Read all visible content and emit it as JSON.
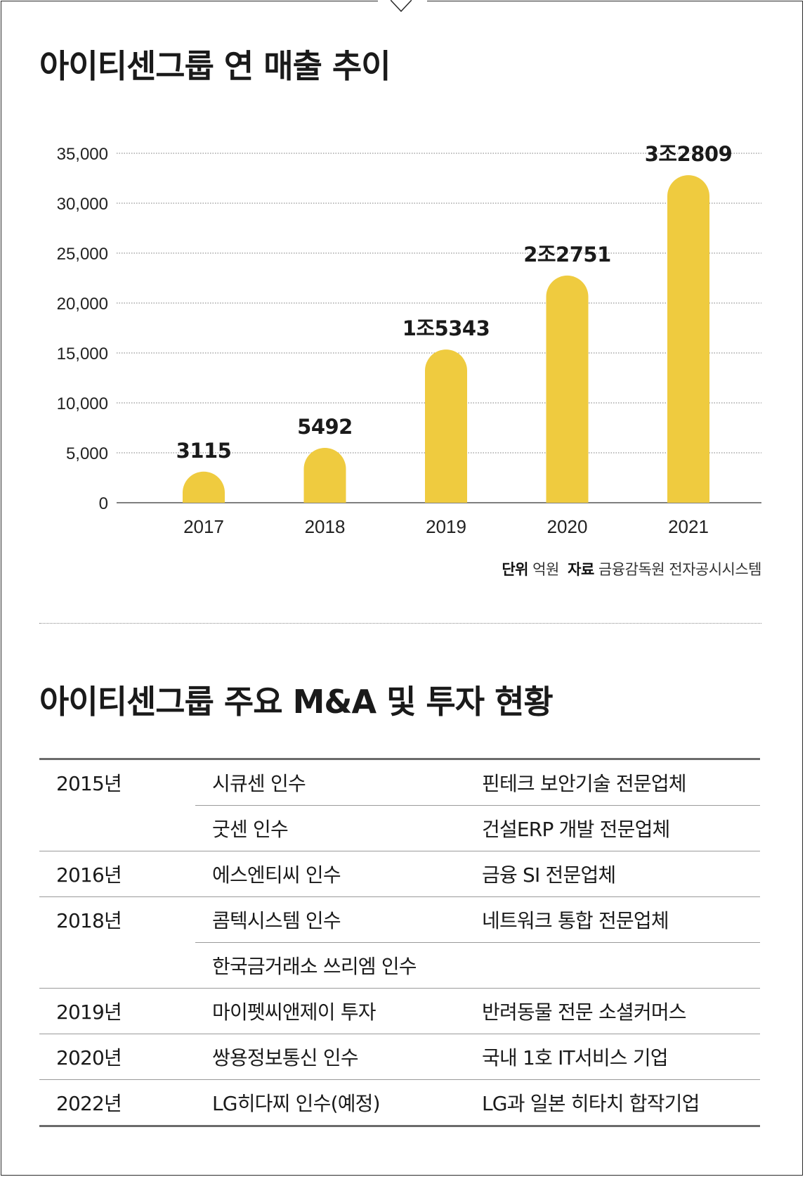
{
  "chart_title": "아이티센그룹 연 매출 추이",
  "source_note": {
    "unit_label": "단위",
    "unit": "억원",
    "source_label": "자료",
    "source": "금융감독원 전자공시시스템"
  },
  "chart_data": {
    "type": "bar",
    "title": "아이티센그룹 연 매출 추이",
    "categories": [
      "2017",
      "2018",
      "2019",
      "2020",
      "2021"
    ],
    "values": [
      3115,
      5492,
      15343,
      22751,
      32809
    ],
    "value_labels": [
      "3115",
      "5492",
      "1조5343",
      "2조2751",
      "3조2809"
    ],
    "ylim": [
      0,
      35000
    ],
    "yticks": [
      0,
      5000,
      10000,
      15000,
      20000,
      25000,
      30000,
      35000
    ],
    "ytick_labels": [
      "0",
      "5,000",
      "10,000",
      "15,000",
      "20,000",
      "25,000",
      "30,000",
      "35,000"
    ],
    "xlabel": "",
    "ylabel": "",
    "grid": true,
    "bar_color": "#EFCB3F"
  },
  "table_title": "아이티센그룹 주요 M&A 및 투자 현황",
  "table_rows": [
    {
      "year": "2015년",
      "action": "시큐센 인수",
      "desc": "핀테크 보안기술 전문업체",
      "sub": false
    },
    {
      "year": "",
      "action": "굿센 인수",
      "desc": "건설ERP 개발 전문업체",
      "sub": true
    },
    {
      "year": "2016년",
      "action": "에스엔티씨 인수",
      "desc": "금융 SI 전문업체",
      "sub": false
    },
    {
      "year": "2018년",
      "action": "콤텍시스템 인수",
      "desc": "네트워크 통합 전문업체",
      "sub": false
    },
    {
      "year": "",
      "action": "한국금거래소 쓰리엠 인수",
      "desc": "",
      "sub": true
    },
    {
      "year": "2019년",
      "action": "마이펫씨앤제이 투자",
      "desc": "반려동물 전문 소셜커머스",
      "sub": false
    },
    {
      "year": "2020년",
      "action": "쌍용정보통신 인수",
      "desc": "국내 1호 IT서비스 기업",
      "sub": false
    },
    {
      "year": "2022년",
      "action": "LG히다찌 인수(예정)",
      "desc": "LG과 일본 히타치 합작기업",
      "sub": false
    }
  ]
}
